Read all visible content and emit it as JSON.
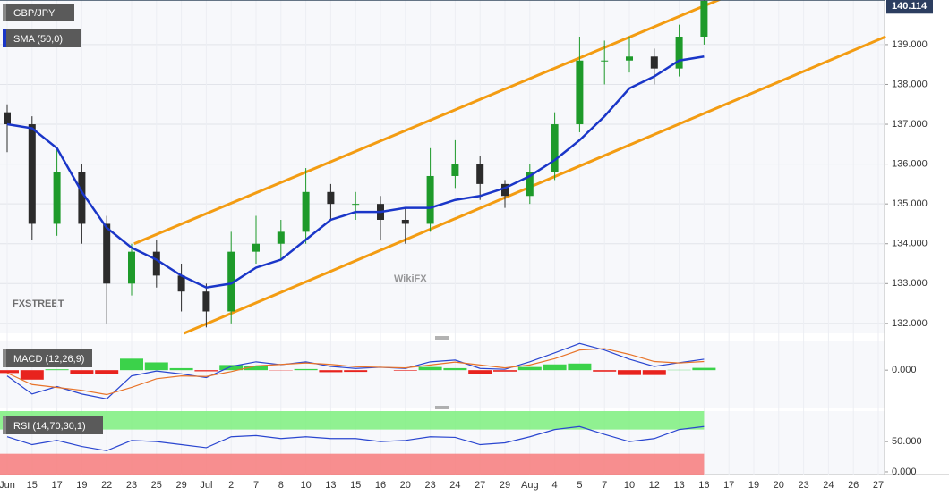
{
  "chart_data": [
    {
      "type": "candlestick",
      "title": "GBP/JPY",
      "categories": [
        "Jun",
        "15",
        "17",
        "19",
        "22",
        "23",
        "25",
        "29",
        "Jul",
        "2",
        "7",
        "8",
        "10",
        "13",
        "15",
        "16",
        "20",
        "23",
        "24",
        "27",
        "29",
        "Aug",
        "4",
        "5",
        "7",
        "10",
        "12",
        "13",
        "16",
        "17",
        "19",
        "20",
        "23",
        "24",
        "26",
        "27"
      ],
      "open": [
        137.3,
        137.0,
        134.5,
        135.8,
        134.5,
        133.0,
        133.8,
        133.2,
        132.8,
        132.3,
        133.8,
        134.0,
        134.3,
        135.3,
        135.0,
        135.0,
        134.6,
        134.5,
        135.7,
        136.0,
        135.5,
        135.2,
        135.8,
        137.0,
        138.6,
        138.6,
        138.7,
        138.4,
        139.2,
        null,
        null,
        null,
        null,
        null,
        null,
        null
      ],
      "high": [
        137.5,
        137.2,
        136.4,
        136.0,
        134.7,
        134.0,
        134.1,
        133.5,
        133.0,
        134.3,
        134.7,
        134.6,
        135.9,
        135.5,
        135.3,
        135.2,
        134.9,
        136.4,
        136.6,
        136.2,
        135.6,
        136.0,
        137.3,
        139.2,
        139.1,
        139.2,
        138.9,
        139.5,
        140.11,
        null,
        null,
        null,
        null,
        null,
        null,
        null
      ],
      "low": [
        136.3,
        134.1,
        134.2,
        134.0,
        132.0,
        132.7,
        132.9,
        132.3,
        131.9,
        132.0,
        133.5,
        133.6,
        134.0,
        134.6,
        134.6,
        134.1,
        134.0,
        134.3,
        135.4,
        135.1,
        134.9,
        135.0,
        135.6,
        136.8,
        138.0,
        138.3,
        138.0,
        138.2,
        139.0,
        null,
        null,
        null,
        null,
        null,
        null,
        null
      ],
      "close": [
        137.0,
        134.5,
        135.8,
        134.5,
        133.0,
        133.8,
        133.2,
        132.8,
        132.3,
        133.8,
        134.0,
        134.3,
        135.3,
        135.0,
        135.0,
        134.6,
        134.5,
        135.7,
        136.0,
        135.5,
        135.2,
        135.8,
        137.0,
        138.6,
        138.6,
        138.7,
        138.4,
        139.2,
        140.1,
        null,
        null,
        null,
        null,
        null,
        null,
        null
      ],
      "up_color": "#1e9a2a",
      "down_color": "#2b2b2b",
      "series": [
        {
          "name": "SMA (50,0)",
          "color": "#1a36c8",
          "values": [
            137.0,
            136.9,
            136.4,
            135.3,
            134.4,
            133.9,
            133.6,
            133.2,
            132.9,
            133.0,
            133.4,
            133.6,
            134.1,
            134.6,
            134.8,
            134.8,
            134.9,
            134.9,
            135.1,
            135.2,
            135.4,
            135.7,
            136.1,
            136.6,
            137.2,
            137.9,
            138.2,
            138.6,
            138.7,
            null,
            null,
            null,
            null,
            null,
            null,
            null
          ]
        }
      ],
      "trend_lines": [
        {
          "color": "#f39c12",
          "points": [
            [
              5.1,
              134.0
            ],
            [
              29.0,
              140.23
            ]
          ]
        },
        {
          "color": "#f39c12",
          "points": [
            [
              7.1,
              131.75
            ],
            [
              35.3,
              139.2
            ]
          ]
        }
      ],
      "last_price": 140.114,
      "ylim": [
        131.75,
        140.12
      ],
      "yticks": [
        {
          "value": 132,
          "label": "132.000"
        },
        {
          "value": 133,
          "label": "133.000"
        },
        {
          "value": 134,
          "label": "134.000"
        },
        {
          "value": 135,
          "label": "135.000"
        },
        {
          "value": 136,
          "label": "136.000"
        },
        {
          "value": 137,
          "label": "137.000"
        },
        {
          "value": 138,
          "label": "138.000"
        },
        {
          "value": 139,
          "label": "139.000"
        }
      ],
      "grid": true,
      "watermarks": [
        "FXSTREET",
        "WikiFX"
      ]
    },
    {
      "type": "macd",
      "title": "MACD (12,26,9)",
      "series": [
        {
          "color": "#2a46d0",
          "values": [
            -0.2,
            -0.83,
            -0.57,
            -0.83,
            -1.0,
            -0.2,
            -0.03,
            -0.13,
            -0.26,
            0.13,
            0.29,
            0.19,
            0.29,
            0.13,
            0.06,
            0.1,
            0.06,
            0.29,
            0.35,
            0.06,
            0.03,
            0.29,
            0.6,
            0.93,
            0.7,
            0.38,
            0.13,
            0.26,
            0.38
          ]
        },
        {
          "color": "#e8742a",
          "values": [
            -0.1,
            -0.5,
            -0.6,
            -0.7,
            -0.85,
            -0.6,
            -0.3,
            -0.2,
            -0.22,
            -0.05,
            0.15,
            0.2,
            0.25,
            0.2,
            0.12,
            0.1,
            0.08,
            0.18,
            0.28,
            0.18,
            0.08,
            0.18,
            0.4,
            0.7,
            0.75,
            0.55,
            0.3,
            0.25,
            0.3
          ]
        }
      ],
      "histogram": [
        -0.1,
        -0.33,
        0.03,
        -0.13,
        -0.15,
        0.4,
        0.27,
        0.07,
        -0.04,
        0.18,
        0.14,
        -0.01,
        0.04,
        -0.07,
        -0.06,
        0,
        -0.02,
        0.11,
        0.07,
        -0.12,
        -0.05,
        0.11,
        0.2,
        0.23,
        -0.05,
        -0.17,
        -0.17,
        0.01,
        0.08
      ],
      "up_color": "#3bd24a",
      "down_color": "#e8231e",
      "ylim": [
        -1.3,
        1.0
      ],
      "yticks": [
        {
          "value": 0,
          "label": "0.000"
        }
      ]
    },
    {
      "type": "rsi",
      "title": "RSI (14,70,30,1)",
      "values": [
        58,
        45,
        52,
        42,
        35,
        52,
        50,
        45,
        40,
        58,
        60,
        55,
        58,
        55,
        55,
        50,
        52,
        58,
        57,
        45,
        48,
        58,
        70,
        75,
        62,
        50,
        55,
        70,
        75
      ],
      "color": "#2a46d0",
      "overbought": 70,
      "oversold": 30,
      "overbought_color": "#7ef07e",
      "oversold_color": "#f77b7b",
      "ylim": [
        -4.5,
        100.5
      ],
      "yticks": [
        {
          "value": 0,
          "label": "0.000"
        },
        {
          "value": 50,
          "label": "50.000"
        }
      ]
    }
  ]
}
